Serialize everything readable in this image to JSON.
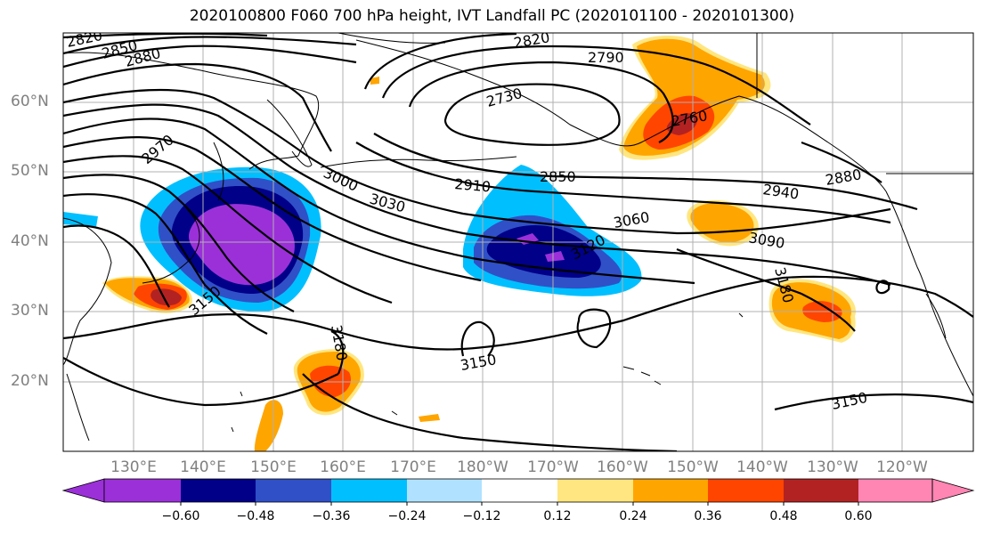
{
  "title": "2020100800 F060 700 hPa height, IVT Landfall PC (2020101100 - 2020101300)",
  "map": {
    "lat_labels": [
      "60°N",
      "50°N",
      "40°N",
      "30°N",
      "20°N"
    ],
    "lon_labels": [
      "130°E",
      "140°E",
      "150°E",
      "160°E",
      "170°E",
      "180°W",
      "170°W",
      "160°W",
      "150°W",
      "140°W",
      "130°W",
      "120°W"
    ],
    "contour_labels": [
      "2820",
      "2850",
      "2880",
      "2970",
      "3000",
      "3030",
      "2820",
      "2790",
      "2730",
      "2760",
      "2910",
      "2850",
      "2940",
      "2880",
      "3060",
      "3090",
      "3120",
      "3180",
      "3150",
      "3180",
      "3150",
      "3150"
    ]
  },
  "colorbar": {
    "tick_labels": [
      "−0.60",
      "−0.48",
      "−0.36",
      "−0.24",
      "−0.12",
      "0.12",
      "0.24",
      "0.36",
      "0.48",
      "0.60"
    ],
    "colors": [
      "#9b30d9",
      "#000088",
      "#3050c8",
      "#00bfff",
      "#b0e2ff",
      "#ffffff",
      "#ffe680",
      "#ffa500",
      "#ff4500",
      "#b22222",
      "#ff85b3"
    ]
  }
}
